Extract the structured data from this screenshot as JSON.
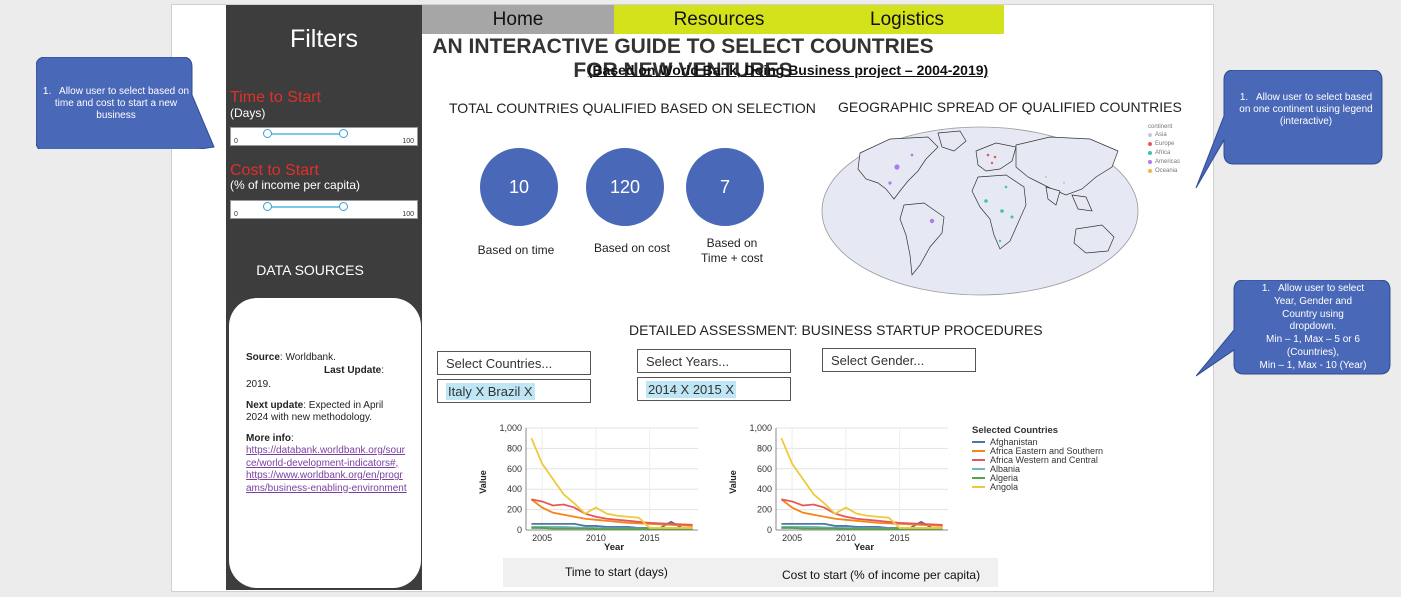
{
  "sidebar": {
    "title": "Filters",
    "time_filter": {
      "label": "Time to Start",
      "unit": "(Days)",
      "min": "0",
      "max": "100",
      "range": [
        20,
        60
      ]
    },
    "cost_filter": {
      "label": "Cost to Start",
      "unit": "(% of income per capita)",
      "min": "0",
      "max": "100",
      "range": [
        20,
        60
      ]
    },
    "data_sources_title": "DATA SOURCES",
    "sources": {
      "source_key": "Source",
      "source_value": ": Worldbank.",
      "last_update_key": "Last Update",
      "last_update_colon": ":",
      "last_update_value": "2019.",
      "next_update_key": "Next update",
      "next_update_value": ": Expected in April 2024 with new methodology.",
      "more_info_key": "More info",
      "more_info_colon": ":",
      "link1": "https://databank.worldbank.org/source/world-development-indicators#,",
      "link2": "https://www.worldbank.org/en/programs/business-enabling-environment"
    }
  },
  "nav": {
    "home": "Home",
    "resources": "Resources",
    "logistics": "Logistics"
  },
  "header": {
    "title": "AN INTERACTIVE GUIDE TO SELECT COUNTRIES FOR NEW VENTURES",
    "subtitle": "(Based on World Bank, Doing Business project – 2004-2019)"
  },
  "totals": {
    "title": "TOTAL COUNTRIES QUALIFIED BASED ON SELECTION",
    "items": [
      {
        "value": "10",
        "label": "Based on time"
      },
      {
        "value": "120",
        "label": "Based on cost"
      },
      {
        "value": "7",
        "label_line1": "Based on",
        "label_line2": "Time + cost"
      }
    ]
  },
  "geo": {
    "title": "GEOGRAPHIC SPREAD OF QUALIFIED COUNTRIES",
    "legend_title": "continent",
    "legend": [
      {
        "name": "Asia",
        "color": "#c9c9dc"
      },
      {
        "name": "Europe",
        "color": "#e05b5b"
      },
      {
        "name": "Africa",
        "color": "#3cc7a0"
      },
      {
        "name": "Americas",
        "color": "#b07ae8"
      },
      {
        "name": "Oceania",
        "color": "#f2b24a"
      }
    ]
  },
  "assessment": {
    "title": "DETAILED ASSESSMENT: BUSINESS STARTUP PROCEDURES",
    "countries_placeholder": "Select Countries...",
    "years_placeholder": "Select Years...",
    "gender_placeholder": "Select Gender...",
    "countries_selected": "Italy X Brazil X",
    "years_selected": "2014 X 2015 X"
  },
  "legend_panel": {
    "title": "Selected Countries",
    "items": [
      {
        "name": "Afghanistan",
        "color": "#4c78a8"
      },
      {
        "name": "Africa Eastern and Southern",
        "color": "#f58518"
      },
      {
        "name": "Africa Western and Central",
        "color": "#e45756"
      },
      {
        "name": "Albania",
        "color": "#72b7b2"
      },
      {
        "name": "Algeria",
        "color": "#54a24b"
      },
      {
        "name": "Angola",
        "color": "#eeca3b"
      }
    ]
  },
  "charts": {
    "left_caption": "Time to start (days)",
    "right_caption": "Cost to start (% of income per capita)"
  },
  "chart_data": [
    {
      "type": "line",
      "xlabel": "Year",
      "ylabel": "Value",
      "ylim": [
        0,
        1000
      ],
      "y_ticks": [
        "0",
        "200",
        "400",
        "600",
        "800",
        "1,000"
      ],
      "x_ticks": [
        "2005",
        "2010",
        "2015"
      ],
      "x": [
        2004,
        2005,
        2006,
        2007,
        2008,
        2009,
        2010,
        2011,
        2012,
        2013,
        2014,
        2015,
        2016,
        2017,
        2018,
        2019
      ],
      "series": [
        {
          "name": "Afghanistan",
          "values": [
            60,
            60,
            60,
            60,
            60,
            40,
            40,
            30,
            30,
            30,
            20,
            20,
            20,
            80,
            20,
            20
          ]
        },
        {
          "name": "Africa Eastern and Southern",
          "values": [
            300,
            220,
            170,
            150,
            130,
            110,
            100,
            90,
            80,
            70,
            65,
            60,
            55,
            50,
            45,
            40
          ]
        },
        {
          "name": "Africa Western and Central",
          "values": [
            300,
            280,
            240,
            250,
            220,
            160,
            130,
            110,
            100,
            90,
            80,
            70,
            65,
            60,
            55,
            50
          ]
        },
        {
          "name": "Albania",
          "values": [
            30,
            30,
            30,
            30,
            25,
            20,
            20,
            15,
            15,
            15,
            15,
            15,
            15,
            15,
            15,
            15
          ]
        },
        {
          "name": "Algeria",
          "values": [
            20,
            20,
            15,
            15,
            15,
            15,
            10,
            10,
            10,
            10,
            10,
            10,
            10,
            10,
            10,
            10
          ]
        },
        {
          "name": "Angola",
          "values": [
            900,
            650,
            500,
            350,
            260,
            160,
            220,
            160,
            140,
            130,
            120,
            20,
            20,
            20,
            20,
            20
          ]
        }
      ]
    },
    {
      "type": "line",
      "xlabel": "Year",
      "ylabel": "Value",
      "ylim": [
        0,
        1000
      ],
      "y_ticks": [
        "0",
        "200",
        "400",
        "600",
        "800",
        "1,000"
      ],
      "x_ticks": [
        "2005",
        "2010",
        "2015"
      ],
      "x": [
        2004,
        2005,
        2006,
        2007,
        2008,
        2009,
        2010,
        2011,
        2012,
        2013,
        2014,
        2015,
        2016,
        2017,
        2018,
        2019
      ],
      "series": [
        {
          "name": "Afghanistan",
          "values": [
            60,
            60,
            60,
            60,
            60,
            40,
            40,
            30,
            30,
            30,
            20,
            20,
            20,
            80,
            20,
            20
          ]
        },
        {
          "name": "Africa Eastern and Southern",
          "values": [
            300,
            220,
            170,
            150,
            130,
            110,
            100,
            90,
            80,
            70,
            65,
            60,
            55,
            50,
            45,
            40
          ]
        },
        {
          "name": "Africa Western and Central",
          "values": [
            300,
            280,
            240,
            250,
            220,
            160,
            130,
            110,
            100,
            90,
            80,
            70,
            65,
            60,
            55,
            50
          ]
        },
        {
          "name": "Albania",
          "values": [
            30,
            30,
            30,
            30,
            25,
            20,
            20,
            15,
            15,
            15,
            15,
            15,
            15,
            15,
            15,
            15
          ]
        },
        {
          "name": "Algeria",
          "values": [
            20,
            20,
            15,
            15,
            15,
            15,
            10,
            10,
            10,
            10,
            10,
            10,
            10,
            10,
            10,
            10
          ]
        },
        {
          "name": "Angola",
          "values": [
            900,
            650,
            500,
            350,
            260,
            160,
            220,
            160,
            140,
            130,
            120,
            20,
            20,
            20,
            20,
            20
          ]
        }
      ]
    }
  ],
  "callouts": [
    {
      "num": "1.",
      "text": "Allow user to select based on  time and cost to start a new business"
    },
    {
      "num": "1.",
      "text": "Allow user to select based on one continent using legend (interactive)"
    },
    {
      "num": "1.",
      "lines": [
        "Allow user to select",
        "Year, Gender and",
        "Country using",
        "dropdown.",
        "Min – 1, Max – 5 or 6",
        "(Countries),",
        "Min – 1, Max - 10 (Year)"
      ]
    }
  ],
  "colors": {
    "sidebar": "#3d3d3d",
    "accent_red": "#e0302a",
    "nav_gray": "#a6a6a6",
    "nav_yellow": "#d4e21c",
    "circle_blue": "#4a68b8",
    "callout_blue": "#4a68b8"
  }
}
